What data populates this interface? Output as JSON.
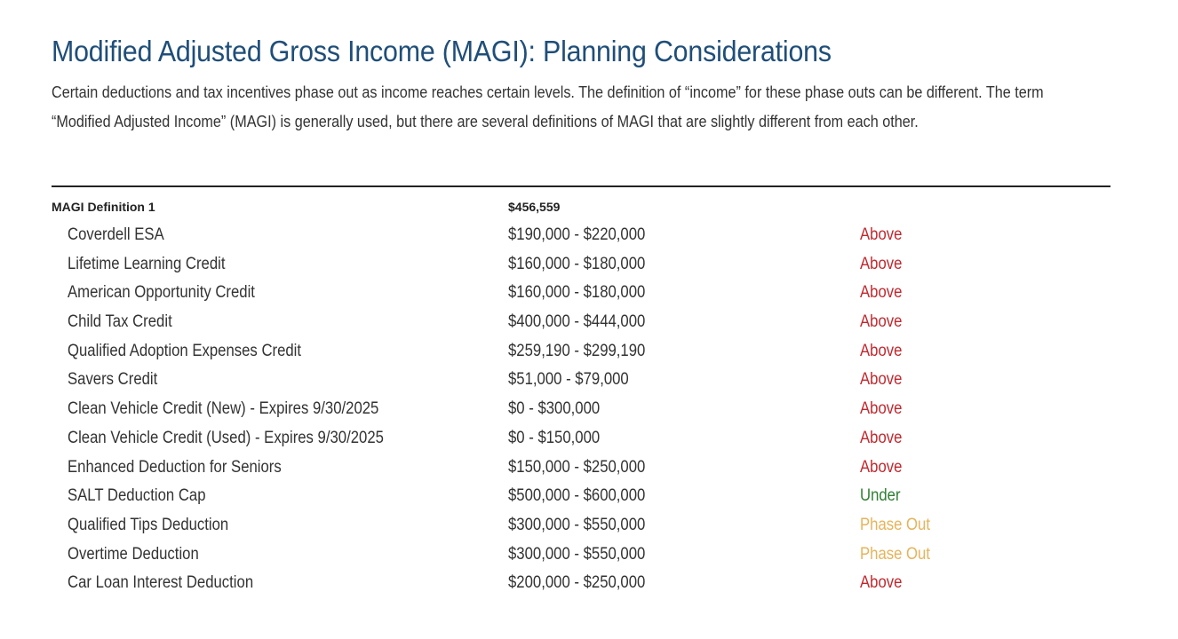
{
  "title": "Modified Adjusted Gross Income (MAGI): Planning Considerations",
  "intro": "Certain deductions and tax incentives phase out as income reaches certain levels. The definition of “income” for these phase outs can be different. The term “Modified Adjusted Income” (MAGI) is generally used, but there are several definitions of MAGI that are slightly different from each other.",
  "table": {
    "header": {
      "label": "MAGI Definition 1",
      "value": "$456,559"
    },
    "rows": [
      {
        "name": "Coverdell ESA",
        "range": "$190,000 - $220,000",
        "status": "Above"
      },
      {
        "name": "Lifetime Learning Credit",
        "range": "$160,000 - $180,000",
        "status": "Above"
      },
      {
        "name": "American Opportunity Credit",
        "range": "$160,000 - $180,000",
        "status": "Above"
      },
      {
        "name": "Child Tax Credit",
        "range": "$400,000 - $444,000",
        "status": "Above"
      },
      {
        "name": "Qualified Adoption Expenses Credit",
        "range": "$259,190 - $299,190",
        "status": "Above"
      },
      {
        "name": "Savers Credit",
        "range": "$51,000 - $79,000",
        "status": "Above"
      },
      {
        "name": "Clean Vehicle Credit (New) - Expires 9/30/2025",
        "range": "$0 - $300,000",
        "status": "Above"
      },
      {
        "name": "Clean Vehicle Credit (Used) - Expires 9/30/2025",
        "range": "$0 - $150,000",
        "status": "Above"
      },
      {
        "name": "Enhanced Deduction for Seniors",
        "range": "$150,000 - $250,000",
        "status": "Above"
      },
      {
        "name": "SALT Deduction Cap",
        "range": "$500,000 - $600,000",
        "status": "Under"
      },
      {
        "name": "Qualified Tips Deduction",
        "range": "$300,000 - $550,000",
        "status": "Phase Out"
      },
      {
        "name": "Overtime Deduction",
        "range": "$300,000 - $550,000",
        "status": "Phase Out"
      },
      {
        "name": "Car Loan Interest Deduction",
        "range": "$200,000 - $250,000",
        "status": "Above"
      }
    ]
  },
  "status_colors": {
    "Above": "#c0272d",
    "Under": "#2e7d32",
    "Phase Out": "#e6b35a"
  }
}
